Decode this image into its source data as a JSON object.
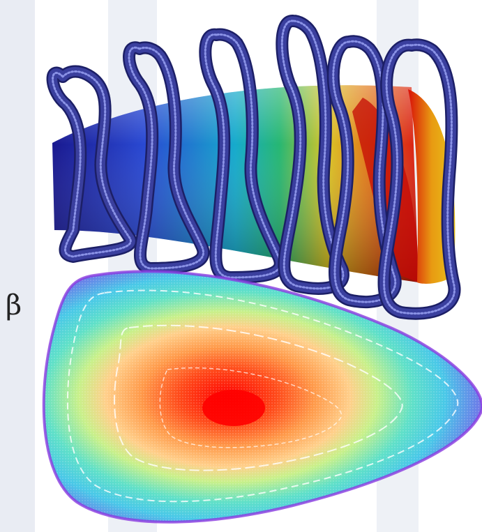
{
  "figure": {
    "greek_label": "β",
    "colors": {
      "coil": "#3a3f9e",
      "coil_edge": "#1c1f66",
      "coil_highlight": "#8a92e6",
      "tube_gradient": [
        "#0d0d8a",
        "#1e3fd0",
        "#0aa6c9",
        "#1bb36b",
        "#d8c21a",
        "#e07a10",
        "#d81008"
      ],
      "cross_section_gradient": [
        "#ff0000",
        "#ff6a2a",
        "#ffb35a",
        "#c8f08a",
        "#5fe0c8",
        "#49c8e8",
        "#6a7fe8",
        "#b05ae0"
      ]
    }
  }
}
